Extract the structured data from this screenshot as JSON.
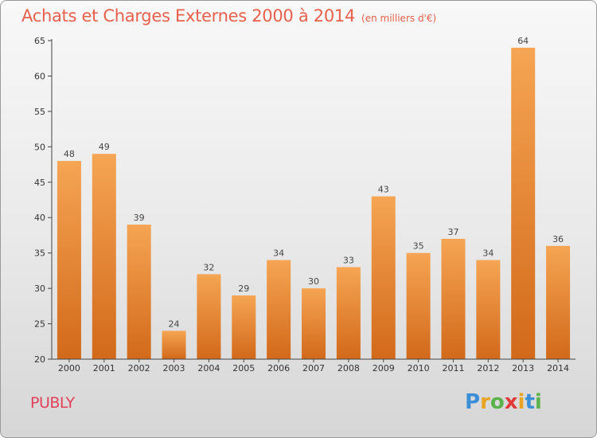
{
  "title": "Achats et Charges Externes 2000 à 2014",
  "unit": "(en milliers d'€)",
  "commune": "PUBLY",
  "logo": "Proxiti",
  "colors": {
    "title": "#e8604c",
    "commune": "#e0405a",
    "bar_top": "#f5a553",
    "bar_bottom": "#d2691a",
    "axis": "#444444"
  },
  "chart_data": {
    "type": "bar",
    "title": "Achats et Charges Externes 2000 à 2014",
    "subtitle": "(en milliers d'€)",
    "xlabel": "",
    "ylabel": "",
    "categories": [
      "2000",
      "2001",
      "2002",
      "2003",
      "2004",
      "2005",
      "2006",
      "2007",
      "2008",
      "2009",
      "2010",
      "2011",
      "2012",
      "2013",
      "2014"
    ],
    "values": [
      48,
      49,
      39,
      24,
      32,
      29,
      34,
      30,
      33,
      43,
      35,
      37,
      34,
      64,
      36
    ],
    "ylim": [
      20,
      65
    ],
    "yticks": [
      20,
      25,
      30,
      35,
      40,
      45,
      50,
      55,
      60,
      65
    ],
    "grid": false,
    "legend": "none"
  }
}
